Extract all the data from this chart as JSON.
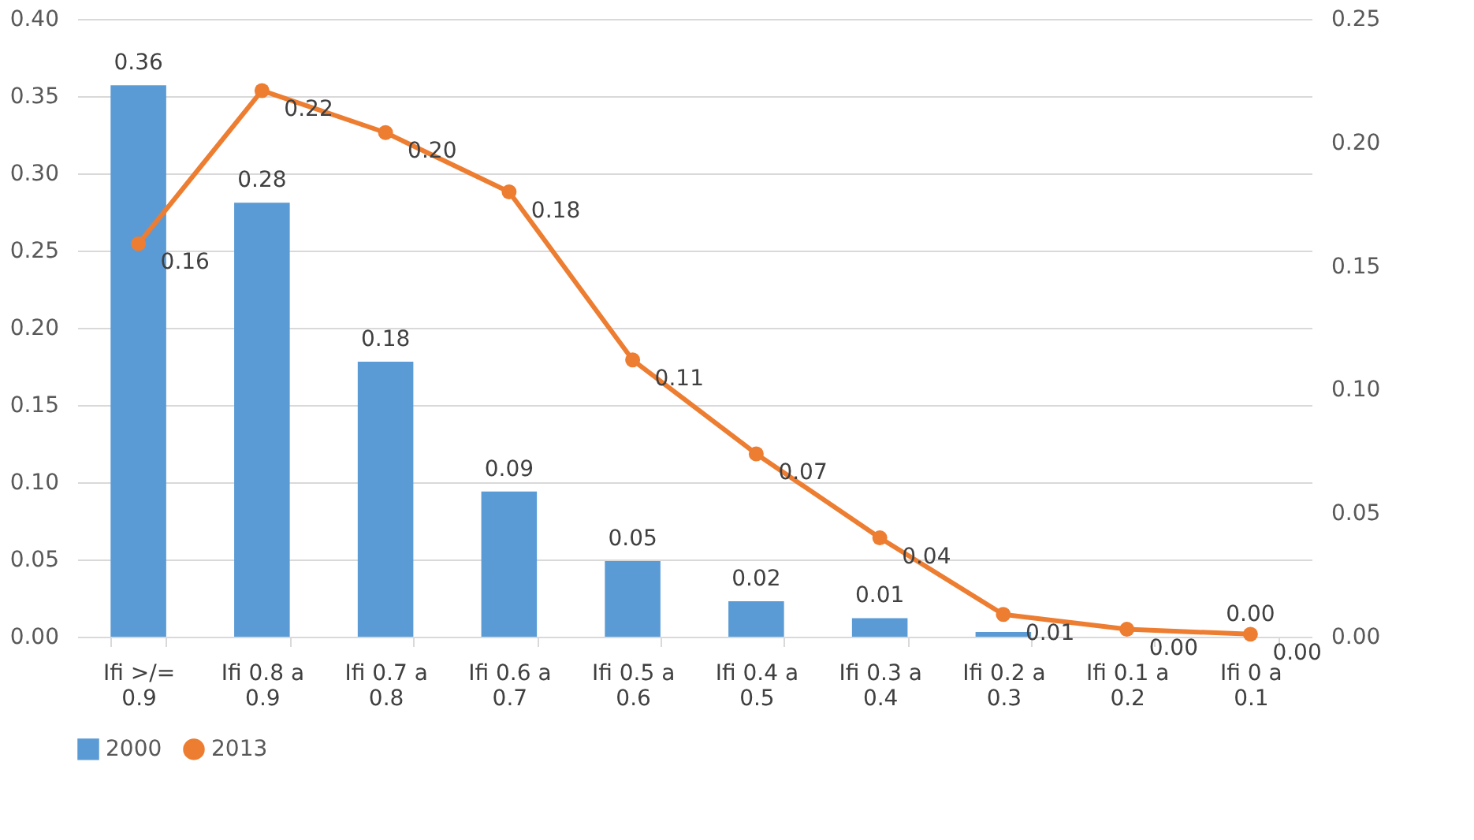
{
  "chart_data": {
    "type": "bar",
    "categories": [
      "Ifi >/= 0.9",
      "Ifi 0.8 a 0.9",
      "Ifi 0.7 a 0.8",
      "Ifi 0.6 a 0.7",
      "Ifi 0.5 a 0.6",
      "Ifi 0.4 a 0.5",
      "Ifi 0.3 a 0.4",
      "Ifi 0.2 a 0.3",
      "Ifi 0.1 a 0.2",
      "Ifi 0 a 0.1"
    ],
    "series": [
      {
        "name": "2000",
        "color": "#5b9bd5",
        "values": [
          0.357,
          0.281,
          0.178,
          0.094,
          0.049,
          0.023,
          0.012,
          0.003,
          0.0,
          0.0
        ],
        "value_labels": [
          "0.36",
          "0.28",
          "0.18",
          "0.09",
          "0.05",
          "0.02",
          "0.01",
          null,
          null,
          "0.00"
        ]
      },
      {
        "name": "2013",
        "type": "line",
        "axis": "y2",
        "color": "#ed7d31",
        "marker": "circle",
        "values": [
          0.159,
          0.221,
          0.204,
          0.18,
          0.112,
          0.074,
          0.04,
          0.009,
          0.003,
          0.001
        ],
        "value_labels": [
          "0.16",
          "0.22",
          "0.20",
          "0.18",
          "0.11",
          "0.07",
          "0.04",
          "0.01",
          "0.00",
          "0.00"
        ]
      }
    ],
    "ylim": [
      0,
      0.4
    ],
    "yticks": [
      {
        "value": 0,
        "label": "0.00"
      },
      0.05,
      {
        "value": 0.1,
        "label": "0.10"
      },
      0.15,
      {
        "value": 0.2,
        "label": "0.20"
      },
      0.25,
      {
        "value": 0.3,
        "label": "0.30"
      },
      0.35,
      {
        "value": 0.4,
        "label": "0.40"
      }
    ],
    "y2lim": [
      0,
      0.25
    ],
    "y2ticks": [
      {
        "value": 0,
        "label": "0.00"
      },
      0.05,
      {
        "value": 0.1,
        "label": "0.10"
      },
      0.15,
      {
        "value": 0.2,
        "label": "0.20"
      },
      0.25
    ],
    "grid": "y",
    "legend": "bottom"
  }
}
